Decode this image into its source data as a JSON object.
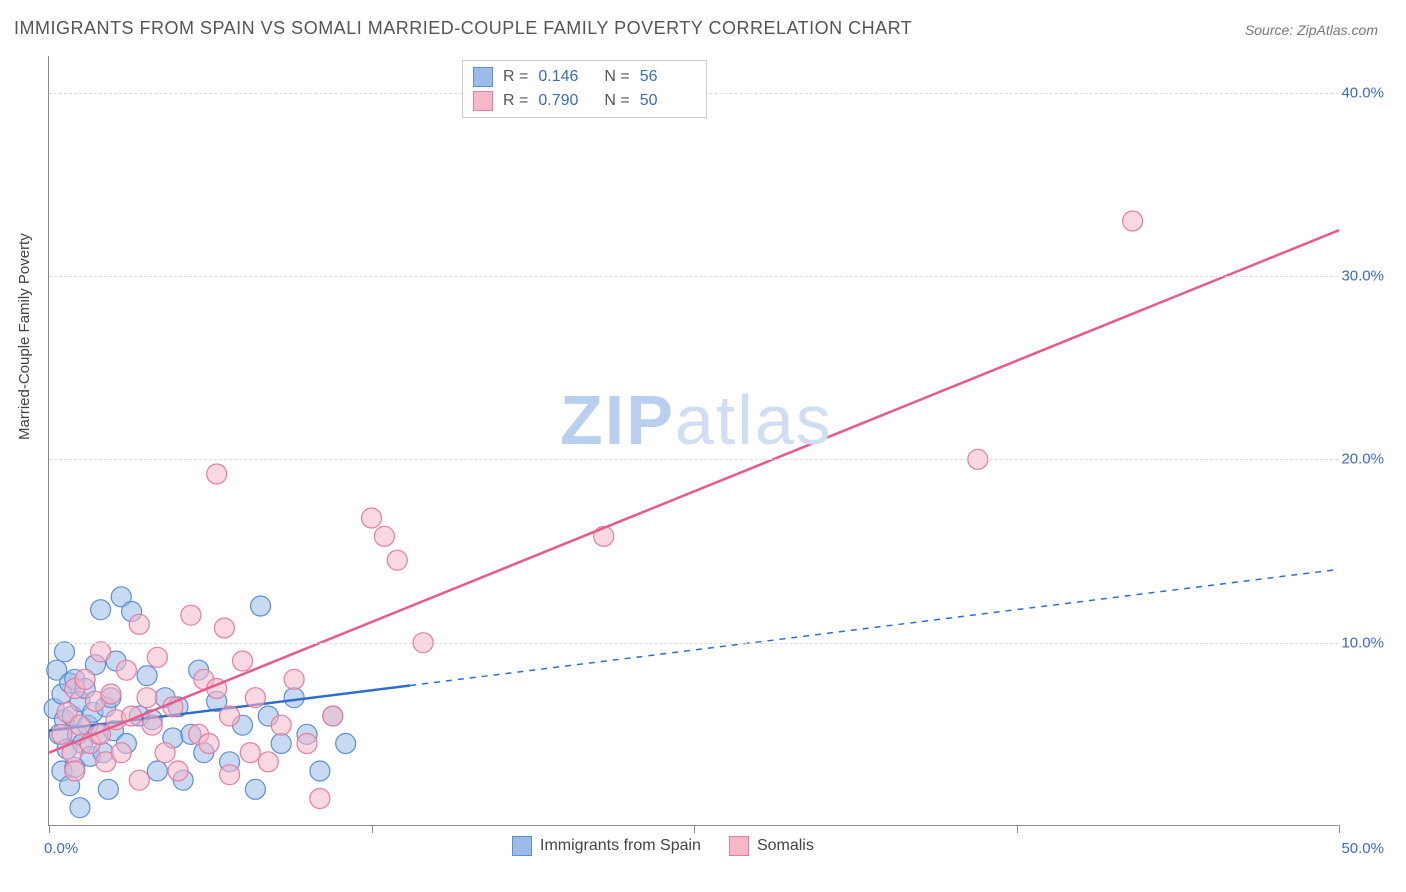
{
  "title": "IMMIGRANTS FROM SPAIN VS SOMALI MARRIED-COUPLE FAMILY POVERTY CORRELATION CHART",
  "source": "Source: ZipAtlas.com",
  "watermark_bold": "ZIP",
  "watermark_light": "atlas",
  "y_axis_label": "Married-Couple Family Poverty",
  "chart": {
    "type": "scatter",
    "xlim": [
      0,
      50
    ],
    "ylim": [
      0,
      42
    ],
    "x_ticks": [
      0,
      12.5,
      25,
      37.5,
      50
    ],
    "x_tick_labels": {
      "0": "0.0%",
      "50": "50.0%"
    },
    "y_gridlines": [
      10,
      20,
      30,
      40
    ],
    "y_tick_labels": {
      "10": "10.0%",
      "20": "20.0%",
      "30": "30.0%",
      "40": "40.0%"
    },
    "background_color": "#ffffff",
    "grid_color": "#dddddd",
    "axis_color": "#888888",
    "tick_label_color": "#3b6db5",
    "series": [
      {
        "id": "spain",
        "label": "Immigrants from Spain",
        "R": "0.146",
        "N": "56",
        "point_fill": "#9bbce8",
        "point_stroke": "#5a8fd4",
        "point_opacity": 0.55,
        "point_radius": 10,
        "line_color": "#2f6fc9",
        "line_width": 2.5,
        "trend_solid_end_x": 14,
        "trend": {
          "x1": 0,
          "y1": 5.2,
          "x2": 50,
          "y2": 14.0
        },
        "points": [
          [
            0.2,
            6.4
          ],
          [
            0.3,
            8.5
          ],
          [
            0.4,
            5.0
          ],
          [
            0.5,
            7.2
          ],
          [
            0.5,
            3.0
          ],
          [
            0.6,
            9.5
          ],
          [
            0.6,
            5.8
          ],
          [
            0.7,
            4.2
          ],
          [
            0.8,
            7.8
          ],
          [
            0.8,
            2.2
          ],
          [
            0.9,
            6.0
          ],
          [
            1.0,
            8.0
          ],
          [
            1.0,
            3.2
          ],
          [
            1.1,
            5.0
          ],
          [
            1.2,
            6.8
          ],
          [
            1.2,
            1.0
          ],
          [
            1.3,
            4.5
          ],
          [
            1.4,
            7.5
          ],
          [
            1.5,
            5.5
          ],
          [
            1.6,
            3.8
          ],
          [
            1.7,
            6.2
          ],
          [
            1.8,
            8.8
          ],
          [
            1.9,
            5.0
          ],
          [
            2.0,
            11.8
          ],
          [
            2.1,
            4.0
          ],
          [
            2.2,
            6.5
          ],
          [
            2.3,
            2.0
          ],
          [
            2.4,
            7.0
          ],
          [
            2.5,
            5.2
          ],
          [
            2.6,
            9.0
          ],
          [
            2.8,
            12.5
          ],
          [
            3.0,
            4.5
          ],
          [
            3.2,
            11.7
          ],
          [
            3.5,
            6.0
          ],
          [
            3.8,
            8.2
          ],
          [
            4.0,
            5.8
          ],
          [
            4.2,
            3.0
          ],
          [
            4.5,
            7.0
          ],
          [
            4.8,
            4.8
          ],
          [
            5.0,
            6.5
          ],
          [
            5.2,
            2.5
          ],
          [
            5.5,
            5.0
          ],
          [
            5.8,
            8.5
          ],
          [
            6.0,
            4.0
          ],
          [
            6.5,
            6.8
          ],
          [
            7.0,
            3.5
          ],
          [
            7.5,
            5.5
          ],
          [
            8.0,
            2.0
          ],
          [
            8.2,
            12.0
          ],
          [
            8.5,
            6.0
          ],
          [
            9.0,
            4.5
          ],
          [
            9.5,
            7.0
          ],
          [
            10.0,
            5.0
          ],
          [
            10.5,
            3.0
          ],
          [
            11.0,
            6.0
          ],
          [
            11.5,
            4.5
          ]
        ]
      },
      {
        "id": "somali",
        "label": "Somalis",
        "R": "0.790",
        "N": "50",
        "point_fill": "#f5b8c8",
        "point_stroke": "#e97aa0",
        "point_opacity": 0.55,
        "point_radius": 10,
        "line_color": "#e85a8a",
        "line_width": 2.5,
        "trend": {
          "x1": 0,
          "y1": 4.0,
          "x2": 50,
          "y2": 32.5
        },
        "points": [
          [
            0.5,
            5.0
          ],
          [
            0.7,
            6.2
          ],
          [
            0.9,
            4.0
          ],
          [
            1.0,
            7.5
          ],
          [
            1.2,
            5.5
          ],
          [
            1.4,
            8.0
          ],
          [
            1.6,
            4.5
          ],
          [
            1.8,
            6.8
          ],
          [
            2.0,
            5.0
          ],
          [
            2.2,
            3.5
          ],
          [
            2.4,
            7.2
          ],
          [
            2.6,
            5.8
          ],
          [
            2.8,
            4.0
          ],
          [
            3.0,
            8.5
          ],
          [
            3.2,
            6.0
          ],
          [
            3.5,
            2.5
          ],
          [
            3.8,
            7.0
          ],
          [
            4.0,
            5.5
          ],
          [
            4.2,
            9.2
          ],
          [
            4.5,
            4.0
          ],
          [
            4.8,
            6.5
          ],
          [
            5.0,
            3.0
          ],
          [
            5.5,
            11.5
          ],
          [
            5.8,
            5.0
          ],
          [
            6.0,
            8.0
          ],
          [
            6.2,
            4.5
          ],
          [
            6.5,
            7.5
          ],
          [
            6.5,
            19.2
          ],
          [
            6.8,
            10.8
          ],
          [
            7.0,
            2.8
          ],
          [
            7.0,
            6.0
          ],
          [
            7.5,
            9.0
          ],
          [
            7.8,
            4.0
          ],
          [
            8.0,
            7.0
          ],
          [
            8.5,
            3.5
          ],
          [
            9.0,
            5.5
          ],
          [
            9.5,
            8.0
          ],
          [
            10.0,
            4.5
          ],
          [
            10.5,
            1.5
          ],
          [
            11.0,
            6.0
          ],
          [
            12.5,
            16.8
          ],
          [
            13.0,
            15.8
          ],
          [
            13.5,
            14.5
          ],
          [
            14.5,
            10.0
          ],
          [
            21.5,
            15.8
          ],
          [
            36.0,
            20.0
          ],
          [
            42.0,
            33.0
          ],
          [
            3.5,
            11.0
          ],
          [
            2.0,
            9.5
          ],
          [
            1.0,
            3.0
          ]
        ]
      }
    ]
  },
  "legend_top": {
    "R_label": "R",
    "N_label": "N",
    "eq": "="
  },
  "legend_bottom_order": [
    "spain",
    "somali"
  ]
}
